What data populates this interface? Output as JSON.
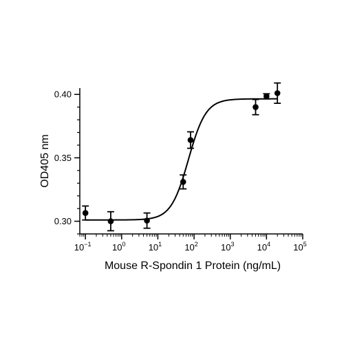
{
  "chart_data": {
    "type": "scatter",
    "title": "",
    "xlabel": "Mouse R-Spondin 1 Protein (ng/mL)",
    "ylabel": "OD405 nm",
    "x_scale": "log10",
    "xlim": [
      0.07,
      100000
    ],
    "ylim": [
      0.29,
      0.405
    ],
    "x_tick_labels": [
      {
        "base": "10",
        "exp": "-1"
      },
      {
        "base": "10",
        "exp": "0"
      },
      {
        "base": "10",
        "exp": "1"
      },
      {
        "base": "10",
        "exp": "2"
      },
      {
        "base": "10",
        "exp": "3"
      },
      {
        "base": "10",
        "exp": "4"
      },
      {
        "base": "10",
        "exp": "5"
      }
    ],
    "y_tick_labels": [
      "0.30",
      "0.35",
      "0.40"
    ],
    "grid": false,
    "series": [
      {
        "points": [
          {
            "x": 0.1,
            "y": 0.3065,
            "err": 0.0055
          },
          {
            "x": 0.5,
            "y": 0.3,
            "err": 0.0075
          },
          {
            "x": 5,
            "y": 0.3005,
            "err": 0.006
          },
          {
            "x": 50,
            "y": 0.331,
            "err": 0.0055
          },
          {
            "x": 80,
            "y": 0.364,
            "err": 0.0065
          },
          {
            "x": 5000,
            "y": 0.39,
            "err": 0.006
          },
          {
            "x": 10000,
            "y": 0.3985,
            "err": 0.002
          },
          {
            "x": 20000,
            "y": 0.401,
            "err": 0.008
          }
        ]
      }
    ],
    "fit": {
      "bottom": 0.301,
      "top": 0.3965,
      "ec50": 70,
      "hill": 1.8
    },
    "colors": {
      "ink": "#000000"
    }
  }
}
